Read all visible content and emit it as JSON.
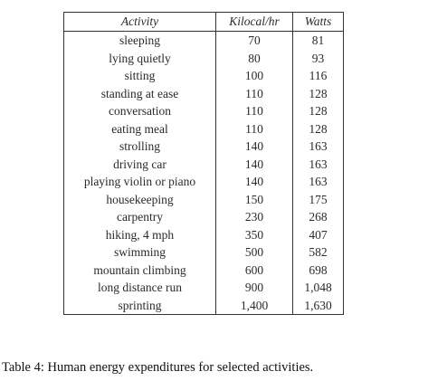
{
  "table": {
    "header": [
      "Activity",
      "Kilocal/hr",
      "Watts"
    ],
    "rows": [
      [
        "sleeping",
        "70",
        "81"
      ],
      [
        "lying quietly",
        "80",
        "93"
      ],
      [
        "sitting",
        "100",
        "116"
      ],
      [
        "standing at ease",
        "110",
        "128"
      ],
      [
        "conversation",
        "110",
        "128"
      ],
      [
        "eating meal",
        "110",
        "128"
      ],
      [
        "strolling",
        "140",
        "163"
      ],
      [
        "driving car",
        "140",
        "163"
      ],
      [
        "playing violin or piano",
        "140",
        "163"
      ],
      [
        "housekeeping",
        "150",
        "175"
      ],
      [
        "carpentry",
        "230",
        "268"
      ],
      [
        "hiking, 4 mph",
        "350",
        "407"
      ],
      [
        "swimming",
        "500",
        "582"
      ],
      [
        "mountain climbing",
        "600",
        "698"
      ],
      [
        "long distance run",
        "900",
        "1,048"
      ],
      [
        "sprinting",
        "1,400",
        "1,630"
      ]
    ]
  },
  "caption": "Table 4: Human energy expenditures for selected activities."
}
